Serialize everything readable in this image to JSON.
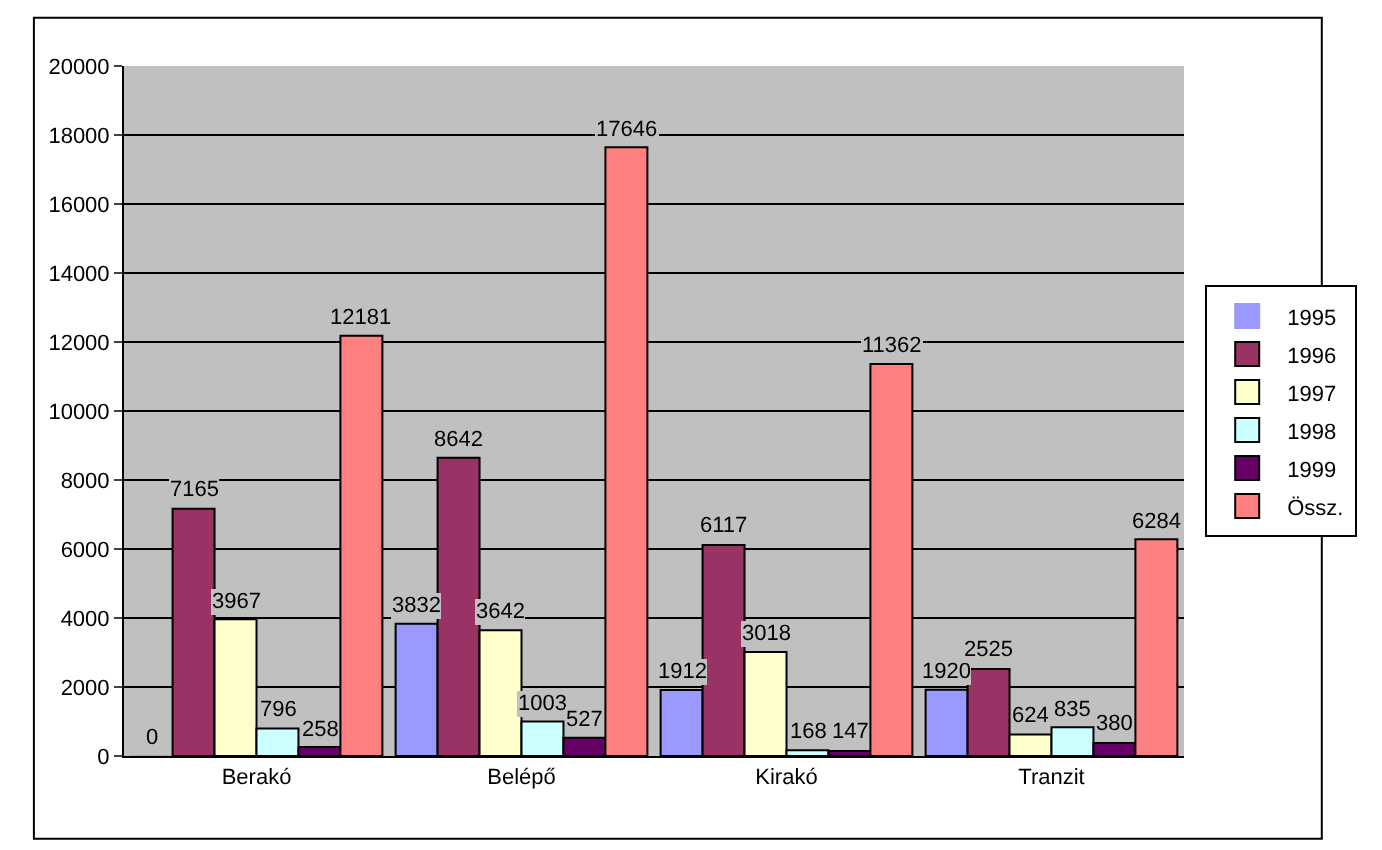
{
  "chart_data": {
    "type": "bar",
    "categories": [
      "Berakó",
      "Belépő",
      "Kirakó",
      "Tranzit"
    ],
    "series": [
      {
        "name": "1995",
        "color": "#9999ff",
        "values": [
          0,
          3832,
          1912,
          1920
        ]
      },
      {
        "name": "1996",
        "color": "#993366",
        "values": [
          7165,
          8642,
          6117,
          2525
        ]
      },
      {
        "name": "1997",
        "color": "#ffffcc",
        "values": [
          3967,
          3642,
          3018,
          624
        ]
      },
      {
        "name": "1998",
        "color": "#ccffff",
        "values": [
          796,
          1003,
          168,
          835
        ]
      },
      {
        "name": "1999",
        "color": "#660066",
        "values": [
          258,
          527,
          147,
          380
        ]
      },
      {
        "name": "Össz.",
        "color": "#ff8080",
        "values": [
          12181,
          17646,
          11362,
          6284
        ]
      }
    ],
    "ylim": [
      0,
      20000
    ],
    "yticks": [
      0,
      2000,
      4000,
      6000,
      8000,
      10000,
      12000,
      14000,
      16000,
      18000,
      20000
    ],
    "grid": "y",
    "legend": "right",
    "data_labels": true
  }
}
